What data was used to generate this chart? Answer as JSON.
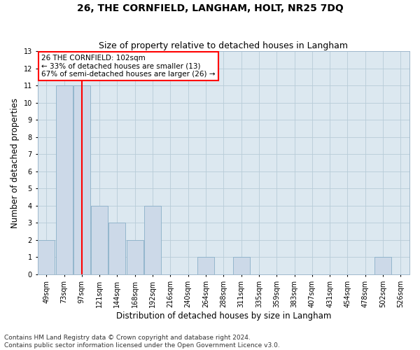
{
  "title": "26, THE CORNFIELD, LANGHAM, HOLT, NR25 7DQ",
  "subtitle": "Size of property relative to detached houses in Langham",
  "xlabel": "Distribution of detached houses by size in Langham",
  "ylabel": "Number of detached properties",
  "bar_labels": [
    "49sqm",
    "73sqm",
    "97sqm",
    "121sqm",
    "144sqm",
    "168sqm",
    "192sqm",
    "216sqm",
    "240sqm",
    "264sqm",
    "288sqm",
    "311sqm",
    "335sqm",
    "359sqm",
    "383sqm",
    "407sqm",
    "431sqm",
    "454sqm",
    "478sqm",
    "502sqm",
    "526sqm"
  ],
  "bar_values": [
    2,
    11,
    11,
    4,
    3,
    2,
    4,
    0,
    0,
    1,
    0,
    1,
    0,
    0,
    0,
    0,
    0,
    0,
    0,
    1,
    0
  ],
  "bar_color": "#ccd9e8",
  "bar_edge_color": "#8aafc8",
  "annotation_text": "26 THE CORNFIELD: 102sqm\n← 33% of detached houses are smaller (13)\n67% of semi-detached houses are larger (26) →",
  "annotation_box_facecolor": "white",
  "annotation_box_edgecolor": "red",
  "vline_color": "red",
  "vline_x": 2.0,
  "ylim": [
    0,
    13
  ],
  "yticks": [
    0,
    1,
    2,
    3,
    4,
    5,
    6,
    7,
    8,
    9,
    10,
    11,
    12,
    13
  ],
  "footer_line1": "Contains HM Land Registry data © Crown copyright and database right 2024.",
  "footer_line2": "Contains public sector information licensed under the Open Government Licence v3.0.",
  "bg_color": "#ffffff",
  "plot_bg_color": "#dce8f0",
  "grid_color": "#b8ccd8",
  "title_fontsize": 10,
  "subtitle_fontsize": 9,
  "axis_label_fontsize": 8.5,
  "tick_fontsize": 7,
  "annot_fontsize": 7.5,
  "footer_fontsize": 6.5
}
